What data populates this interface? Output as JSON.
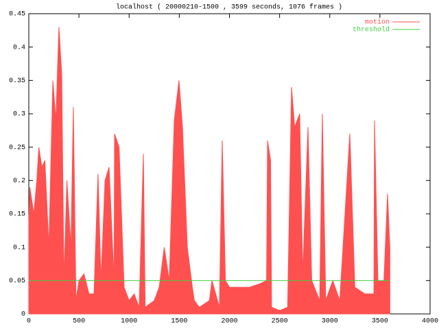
{
  "chart_data": {
    "type": "impulse-area",
    "title": "localhost ( 20000210-1500 , 3599 seconds, 1076 frames )",
    "xlim": [
      0,
      4000
    ],
    "xticks": [
      0,
      500,
      1000,
      1500,
      2000,
      2500,
      3000,
      3500,
      4000
    ],
    "ylim": [
      0,
      0.45
    ],
    "yticks": [
      0,
      0.05,
      0.1,
      0.15,
      0.2,
      0.25,
      0.3,
      0.35,
      0.4,
      0.45
    ],
    "legend": "top-right",
    "series": [
      {
        "name": "motion",
        "color": "#ff5050",
        "x": [
          0,
          10,
          50,
          80,
          100,
          130,
          160,
          200,
          240,
          270,
          300,
          328,
          350,
          380,
          420,
          444,
          470,
          500,
          550,
          600,
          650,
          690,
          720,
          760,
          800,
          850,
          855,
          900,
          950,
          1000,
          1050,
          1100,
          1142,
          1160,
          1250,
          1300,
          1350,
          1400,
          1450,
          1497,
          1532,
          1580,
          1630,
          1650,
          1700,
          1800,
          1826,
          1900,
          1928,
          1960,
          2000,
          2100,
          2200,
          2300,
          2370,
          2380,
          2410,
          2420,
          2500,
          2580,
          2619,
          2650,
          2700,
          2730,
          2783,
          2820,
          2900,
          2926,
          2960,
          3030,
          3100,
          3200,
          3250,
          3350,
          3440,
          3446,
          3480,
          3540,
          3576,
          3599
        ],
        "values": [
          0.14,
          0.19,
          0.15,
          0.2,
          0.25,
          0.22,
          0.23,
          0.1,
          0.35,
          0.29,
          0.43,
          0.36,
          0.05,
          0.2,
          0.1,
          0.31,
          0.02,
          0.05,
          0.06,
          0.03,
          0.03,
          0.21,
          0.05,
          0.2,
          0.22,
          0.05,
          0.27,
          0.25,
          0.04,
          0.02,
          0.03,
          0.01,
          0.24,
          0.01,
          0.02,
          0.04,
          0.1,
          0.05,
          0.29,
          0.35,
          0.28,
          0.1,
          0.04,
          0.02,
          0.01,
          0.02,
          0.05,
          0.01,
          0.26,
          0.05,
          0.04,
          0.04,
          0.04,
          0.045,
          0.05,
          0.26,
          0.23,
          0.01,
          0.005,
          0.01,
          0.34,
          0.28,
          0.3,
          0.06,
          0.28,
          0.05,
          0.02,
          0.3,
          0.02,
          0.05,
          0.02,
          0.27,
          0.04,
          0.03,
          0.03,
          0.29,
          0.05,
          0.05,
          0.18,
          0.1
        ]
      },
      {
        "name": "threshold",
        "color": "#40d040",
        "x": [
          0,
          3599
        ],
        "values": [
          0.05,
          0.05
        ]
      }
    ]
  }
}
